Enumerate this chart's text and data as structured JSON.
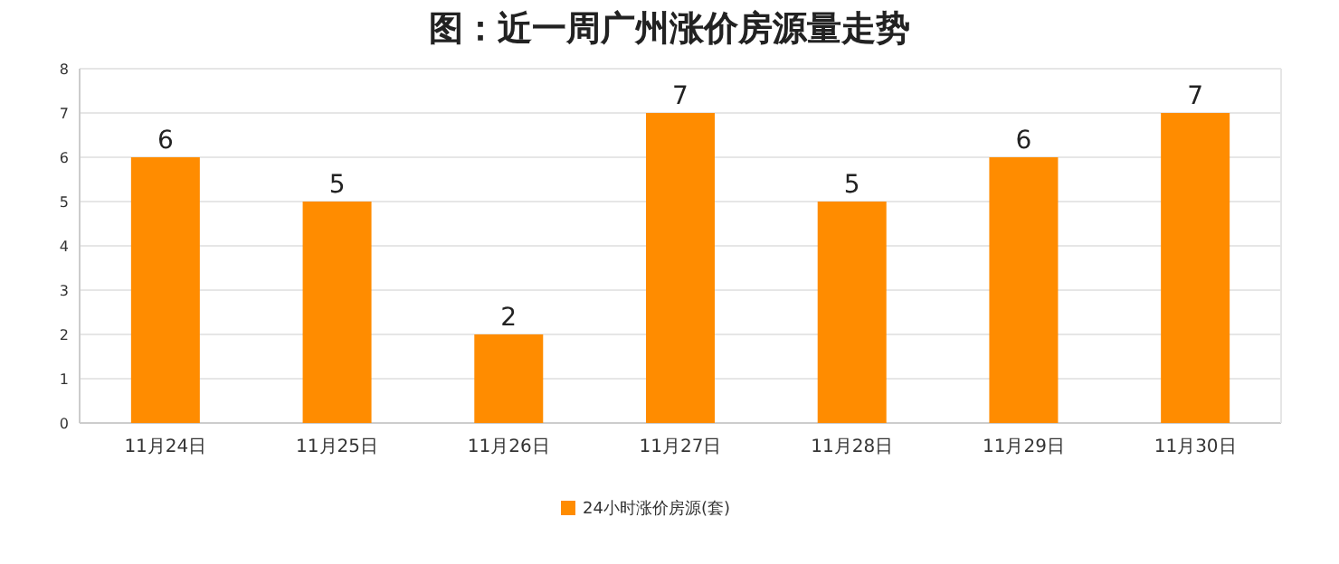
{
  "chart_data": {
    "type": "bar",
    "title": "图：近一周广州涨价房源量走势",
    "categories": [
      "11月24日",
      "11月25日",
      "11月26日",
      "11月27日",
      "11月28日",
      "11月29日",
      "11月30日"
    ],
    "series": [
      {
        "name": "24小时涨价房源(套)",
        "color": "#ff8c00",
        "values": [
          6,
          5,
          2,
          7,
          5,
          6,
          7
        ]
      }
    ],
    "ylim": [
      0,
      8
    ],
    "yticks": [
      0,
      1,
      2,
      3,
      4,
      5,
      6,
      7,
      8
    ],
    "grid": "y",
    "legend": "bottom",
    "data_labels": true
  }
}
